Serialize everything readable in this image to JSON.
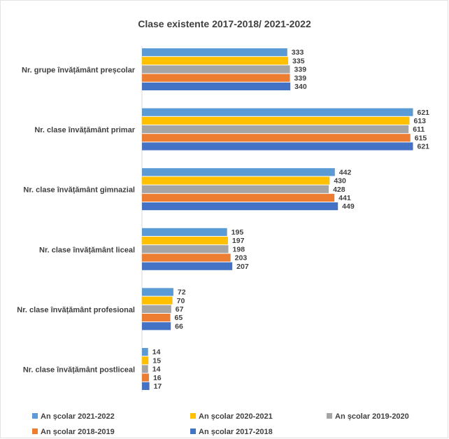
{
  "chart_data": {
    "type": "bar",
    "orientation": "horizontal",
    "title": "Clase existente 2017-2018/ 2021-2022",
    "xlim": [
      0,
      640
    ],
    "categories": [
      "Nr. grupe învățământ preșcolar",
      "Nr. clase învățământ primar",
      "Nr. clase învățământ gimnazial",
      "Nr. clase învățământ liceal",
      "Nr. clase învățământ profesional",
      "Nr. clase învățământ postliceal"
    ],
    "series": [
      {
        "name": "An școlar 2021-2022",
        "color": "#5b9bd5",
        "values": [
          333,
          621,
          442,
          195,
          72,
          14
        ]
      },
      {
        "name": "An școlar 2020-2021",
        "color": "#ffc000",
        "values": [
          335,
          613,
          430,
          197,
          70,
          15
        ]
      },
      {
        "name": "An școlar 2019-2020",
        "color": "#a5a5a5",
        "values": [
          339,
          611,
          428,
          198,
          67,
          14
        ]
      },
      {
        "name": "An școlar 2018-2019",
        "color": "#ed7d31",
        "values": [
          339,
          615,
          441,
          203,
          65,
          16
        ]
      },
      {
        "name": "An școlar 2017-2018",
        "color": "#4472c4",
        "values": [
          340,
          621,
          449,
          207,
          66,
          17
        ]
      }
    ],
    "axis_line_color": "#d9d9d9",
    "legend_position": "bottom",
    "gridlines": false
  }
}
